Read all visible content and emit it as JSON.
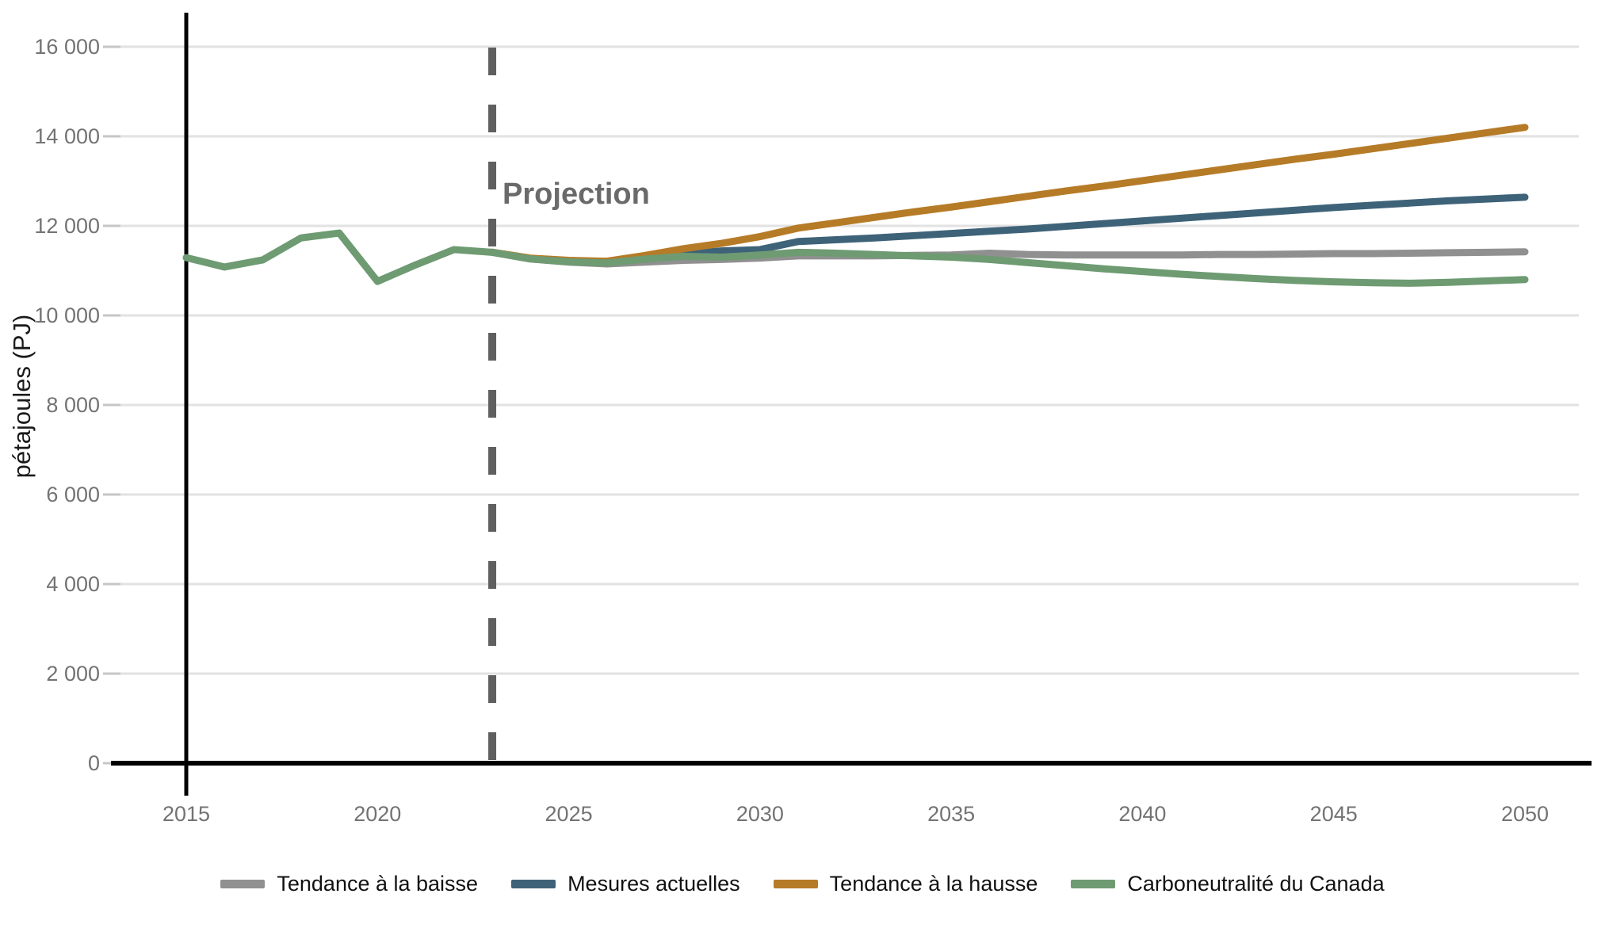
{
  "chart_data": {
    "type": "line",
    "title": "",
    "ylabel": "pétajoules (PJ)",
    "xlabel": "",
    "grid": "horizontal",
    "legend_position": "bottom",
    "ylim": [
      0,
      16800
    ],
    "xlim": [
      2013,
      2052
    ],
    "y_ticks": {
      "values": [
        0,
        2000,
        4000,
        6000,
        8000,
        10000,
        12000,
        14000,
        16000
      ],
      "labels": [
        "0",
        "2 000",
        "4 000",
        "6 000",
        "8 000",
        "10 000",
        "12 000",
        "14 000",
        "16 000"
      ]
    },
    "x_ticks": {
      "values": [
        2015,
        2020,
        2025,
        2030,
        2035,
        2040,
        2045,
        2050
      ],
      "labels": [
        "2015",
        "2020",
        "2025",
        "2030",
        "2035",
        "2040",
        "2045",
        "2050"
      ]
    },
    "projection": {
      "label": "Projection",
      "year": 2023
    },
    "history": {
      "color": "#6e9b72",
      "years": [
        2015,
        2016,
        2017,
        2018,
        2019,
        2020,
        2021,
        2022,
        2023
      ],
      "values": [
        11290,
        11080,
        11240,
        11730,
        11840,
        10760,
        11130,
        11470,
        11410
      ]
    },
    "series": [
      {
        "name": "Tendance à la baisse",
        "color": "#909090",
        "years": [
          2023,
          2024,
          2025,
          2026,
          2027,
          2028,
          2029,
          2030,
          2031,
          2032,
          2033,
          2034,
          2035,
          2036,
          2037,
          2038,
          2039,
          2040,
          2041,
          2042,
          2043,
          2044,
          2045,
          2046,
          2047,
          2048,
          2049,
          2050
        ],
        "values": [
          11410,
          11260,
          11190,
          11150,
          11190,
          11230,
          11250,
          11280,
          11330,
          11330,
          11330,
          11340,
          11350,
          11390,
          11360,
          11350,
          11350,
          11350,
          11350,
          11360,
          11360,
          11370,
          11380,
          11380,
          11390,
          11400,
          11410,
          11420
        ]
      },
      {
        "name": "Mesures actuelles",
        "color": "#3e6379",
        "years": [
          2023,
          2024,
          2025,
          2026,
          2027,
          2028,
          2029,
          2030,
          2031,
          2032,
          2033,
          2034,
          2035,
          2036,
          2037,
          2038,
          2039,
          2040,
          2041,
          2042,
          2043,
          2044,
          2045,
          2046,
          2047,
          2048,
          2049,
          2050
        ],
        "values": [
          11410,
          11270,
          11210,
          11180,
          11260,
          11370,
          11440,
          11470,
          11650,
          11690,
          11730,
          11780,
          11830,
          11880,
          11930,
          11990,
          12050,
          12110,
          12170,
          12230,
          12290,
          12350,
          12410,
          12460,
          12510,
          12560,
          12600,
          12640
        ]
      },
      {
        "name": "Tendance à la hausse",
        "color": "#b67b27",
        "years": [
          2023,
          2024,
          2025,
          2026,
          2027,
          2028,
          2029,
          2030,
          2031,
          2032,
          2033,
          2034,
          2035,
          2036,
          2037,
          2038,
          2039,
          2040,
          2041,
          2042,
          2043,
          2044,
          2045,
          2046,
          2047,
          2048,
          2049,
          2050
        ],
        "values": [
          11410,
          11280,
          11230,
          11210,
          11340,
          11490,
          11610,
          11760,
          11950,
          12070,
          12190,
          12310,
          12420,
          12540,
          12660,
          12780,
          12890,
          13010,
          13130,
          13250,
          13370,
          13490,
          13600,
          13720,
          13840,
          13960,
          14080,
          14200
        ]
      },
      {
        "name": "Carboneutralité du Canada",
        "color": "#6e9b72",
        "years": [
          2023,
          2024,
          2025,
          2026,
          2027,
          2028,
          2029,
          2030,
          2031,
          2032,
          2033,
          2034,
          2035,
          2036,
          2037,
          2038,
          2039,
          2040,
          2041,
          2042,
          2043,
          2044,
          2045,
          2046,
          2047,
          2048,
          2049,
          2050
        ],
        "values": [
          11410,
          11260,
          11200,
          11170,
          11260,
          11320,
          11300,
          11350,
          11410,
          11390,
          11360,
          11330,
          11300,
          11250,
          11180,
          11110,
          11040,
          10980,
          10920,
          10870,
          10820,
          10780,
          10750,
          10730,
          10720,
          10740,
          10770,
          10800
        ]
      }
    ],
    "style_colors": {
      "gridline": "#e2e2e2",
      "tick_mark": "#c6c6c6",
      "tick_label": "#737373",
      "axis_line": "#000000",
      "projection_line": "#5f5f5f",
      "projection_text": "#6a6a6a",
      "axis_title": "#1a1a1a"
    }
  }
}
